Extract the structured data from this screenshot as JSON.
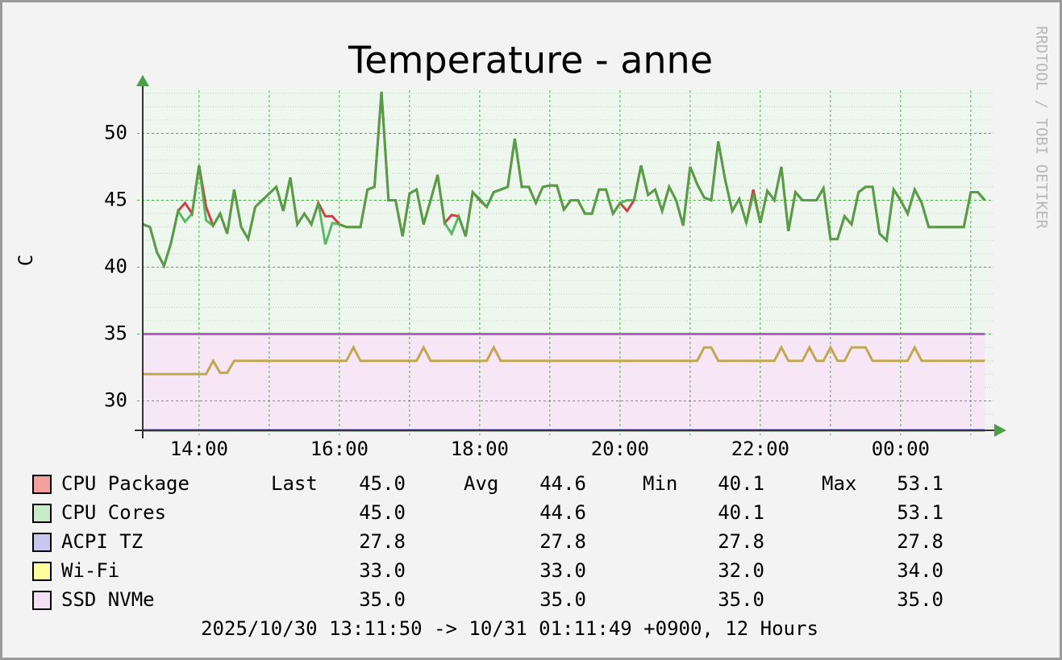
{
  "chart_data": {
    "type": "line",
    "title": "Temperature - anne",
    "y_label": "C",
    "side_text": "RRDTOOL / TOBI OETIKER",
    "footer": "2025/10/30 13:11:50 -> 10/31 01:11:49 +0900, 12 Hours",
    "x": [
      13.2,
      13.3,
      13.4,
      13.5,
      13.6,
      13.7,
      13.8,
      13.9,
      14.0,
      14.1,
      14.2,
      14.3,
      14.4,
      14.5,
      14.6,
      14.7,
      14.8,
      14.9,
      15.0,
      15.1,
      15.2,
      15.3,
      15.4,
      15.5,
      15.6,
      15.7,
      15.8,
      15.9,
      16.0,
      16.1,
      16.2,
      16.3,
      16.4,
      16.5,
      16.6,
      16.7,
      16.8,
      16.9,
      17.0,
      17.1,
      17.2,
      17.3,
      17.4,
      17.5,
      17.6,
      17.7,
      17.8,
      17.9,
      18.0,
      18.1,
      18.2,
      18.3,
      18.4,
      18.5,
      18.6,
      18.7,
      18.8,
      18.9,
      19.0,
      19.1,
      19.2,
      19.3,
      19.4,
      19.5,
      19.6,
      19.7,
      19.8,
      19.9,
      20.0,
      20.1,
      20.2,
      20.3,
      20.4,
      20.5,
      20.6,
      20.7,
      20.8,
      20.9,
      21.0,
      21.1,
      21.2,
      21.3,
      21.4,
      21.5,
      21.6,
      21.7,
      21.8,
      21.9,
      22.0,
      22.1,
      22.2,
      22.3,
      22.4,
      22.5,
      22.6,
      22.7,
      22.8,
      22.9,
      23.0,
      23.1,
      23.2,
      23.3,
      23.4,
      23.5,
      23.6,
      23.7,
      23.8,
      23.9,
      24.0,
      24.1,
      24.2,
      24.3,
      24.4,
      24.5,
      24.6,
      24.7,
      24.8,
      24.9,
      25.0,
      25.1,
      25.2
    ],
    "xlim": [
      13.197,
      25.197
    ],
    "xticks": [
      {
        "value": 14,
        "label": "14:00"
      },
      {
        "value": 16,
        "label": "16:00"
      },
      {
        "value": 18,
        "label": "18:00"
      },
      {
        "value": 20,
        "label": "20:00"
      },
      {
        "value": 22,
        "label": "22:00"
      },
      {
        "value": 24,
        "label": "00:00"
      }
    ],
    "xminor_ticks": [
      15,
      17,
      19,
      21,
      23,
      25
    ],
    "ylim": [
      27.8,
      53.5
    ],
    "yticks": [
      30,
      35,
      40,
      45,
      50
    ],
    "grid": true,
    "stat_headers": [
      "Last",
      "Avg",
      "Min",
      "Max"
    ],
    "series": [
      {
        "name": "CPU Package",
        "color": "#d04040",
        "swatch": "#f4a0a0",
        "values": [
          43.2,
          43.0,
          41.1,
          40.1,
          41.8,
          44.2,
          44.8,
          44.0,
          47.6,
          44.5,
          43.1,
          44.0,
          42.5,
          45.8,
          43.0,
          42.1,
          44.5,
          45.0,
          45.5,
          46.0,
          44.2,
          46.7,
          43.2,
          44.0,
          43.2,
          44.8,
          43.8,
          43.8,
          43.2,
          43.0,
          43.0,
          43.0,
          45.8,
          46.0,
          53.1,
          45.0,
          45.0,
          42.3,
          45.5,
          45.8,
          43.2,
          45.0,
          46.9,
          43.3,
          43.9,
          43.8,
          42.3,
          45.6,
          45.0,
          44.5,
          45.6,
          45.8,
          46.0,
          49.6,
          46.0,
          46.0,
          44.8,
          46.0,
          46.1,
          46.1,
          44.3,
          45.0,
          45.0,
          44.0,
          44.0,
          45.8,
          45.8,
          44.0,
          44.8,
          44.2,
          45.0,
          47.6,
          45.4,
          45.8,
          44.2,
          46.0,
          45.0,
          43.1,
          47.5,
          46.2,
          45.2,
          45.0,
          49.4,
          46.5,
          44.2,
          45.1,
          43.3,
          45.8,
          43.3,
          45.7,
          45.0,
          47.5,
          42.7,
          45.6,
          45.0,
          45.0,
          45.0,
          45.9,
          42.1,
          42.1,
          43.8,
          43.2,
          45.6,
          46.0,
          46.0,
          42.5,
          42.0,
          45.8,
          45.0,
          44.0,
          45.8,
          44.8,
          43.0,
          43.0,
          43.0,
          43.0,
          43.0,
          43.0,
          45.6,
          45.6,
          45.0
        ],
        "stats": [
          "45.0",
          "44.6",
          "40.1",
          "53.1"
        ]
      },
      {
        "name": "CPU Cores",
        "color": "#3fae49",
        "swatch": "#c8ecc8",
        "values": [
          43.2,
          43.0,
          41.1,
          40.1,
          41.8,
          44.2,
          43.4,
          44.0,
          47.6,
          43.5,
          43.1,
          44.0,
          42.5,
          45.8,
          43.0,
          42.1,
          44.5,
          45.0,
          45.5,
          46.0,
          44.2,
          46.7,
          43.2,
          44.0,
          43.2,
          44.8,
          41.7,
          43.3,
          43.2,
          43.0,
          43.0,
          43.0,
          45.8,
          46.0,
          53.1,
          45.0,
          45.0,
          42.3,
          45.5,
          45.8,
          43.2,
          45.0,
          46.9,
          43.3,
          42.5,
          43.8,
          42.3,
          45.6,
          45.1,
          44.5,
          45.6,
          45.8,
          46.0,
          49.6,
          46.0,
          46.0,
          44.8,
          46.0,
          46.1,
          46.1,
          44.3,
          45.0,
          45.0,
          44.0,
          44.0,
          45.8,
          45.8,
          44.0,
          44.8,
          45.0,
          45.0,
          47.6,
          45.4,
          45.8,
          44.2,
          46.0,
          45.0,
          43.1,
          47.5,
          46.2,
          45.2,
          45.0,
          49.4,
          46.5,
          44.2,
          45.1,
          43.3,
          45.5,
          43.3,
          45.7,
          45.0,
          47.5,
          42.7,
          45.6,
          45.0,
          45.0,
          45.0,
          45.9,
          42.1,
          42.1,
          43.8,
          43.2,
          45.6,
          46.0,
          46.0,
          42.5,
          42.0,
          45.8,
          45.0,
          44.0,
          45.8,
          44.8,
          43.0,
          43.0,
          43.0,
          43.0,
          43.0,
          43.0,
          45.6,
          45.6,
          45.0
        ],
        "stats": [
          "45.0",
          "44.6",
          "40.1",
          "53.1"
        ]
      },
      {
        "name": "ACPI TZ",
        "color": "#6060c0",
        "swatch": "#c8c8f0",
        "x": [
          13.2,
          25.2
        ],
        "values": [
          27.8,
          27.8
        ],
        "stats": [
          "27.8",
          "27.8",
          "27.8",
          "27.8"
        ]
      },
      {
        "name": "Wi-Fi",
        "color": "#c0a850",
        "swatch": "#ffffa0",
        "values": [
          32.0,
          32.0,
          32.0,
          32.0,
          32.0,
          32.0,
          32.0,
          32.0,
          32.0,
          32.0,
          33.0,
          32.1,
          32.1,
          33.0,
          33.0,
          33.0,
          33.0,
          33.0,
          33.0,
          33.0,
          33.0,
          33.0,
          33.0,
          33.0,
          33.0,
          33.0,
          33.0,
          33.0,
          33.0,
          33.0,
          34.0,
          33.0,
          33.0,
          33.0,
          33.0,
          33.0,
          33.0,
          33.0,
          33.0,
          33.0,
          34.0,
          33.0,
          33.0,
          33.0,
          33.0,
          33.0,
          33.0,
          33.0,
          33.0,
          33.0,
          34.0,
          33.0,
          33.0,
          33.0,
          33.0,
          33.0,
          33.0,
          33.0,
          33.0,
          33.0,
          33.0,
          33.0,
          33.0,
          33.0,
          33.0,
          33.0,
          33.0,
          33.0,
          33.0,
          33.0,
          33.0,
          33.0,
          33.0,
          33.0,
          33.0,
          33.0,
          33.0,
          33.0,
          33.0,
          33.0,
          34.0,
          34.0,
          33.0,
          33.0,
          33.0,
          33.0,
          33.0,
          33.0,
          33.0,
          33.0,
          33.0,
          34.0,
          33.0,
          33.0,
          33.0,
          34.0,
          33.0,
          33.0,
          34.0,
          33.0,
          33.0,
          34.0,
          34.0,
          34.0,
          33.0,
          33.0,
          33.0,
          33.0,
          33.0,
          33.0,
          34.0,
          33.0,
          33.0,
          33.0,
          33.0,
          33.0,
          33.0,
          33.0,
          33.0,
          33.0,
          33.0
        ],
        "stats": [
          "33.0",
          "33.0",
          "32.0",
          "34.0"
        ]
      },
      {
        "name": "SSD NVMe",
        "color": "#b060c0",
        "swatch": "#f4e0f4",
        "fill": "#f6e6f6",
        "x": [
          13.2,
          25.2
        ],
        "values": [
          35.0,
          35.0
        ],
        "stats": [
          "35.0",
          "35.0",
          "35.0",
          "35.0"
        ]
      }
    ]
  }
}
